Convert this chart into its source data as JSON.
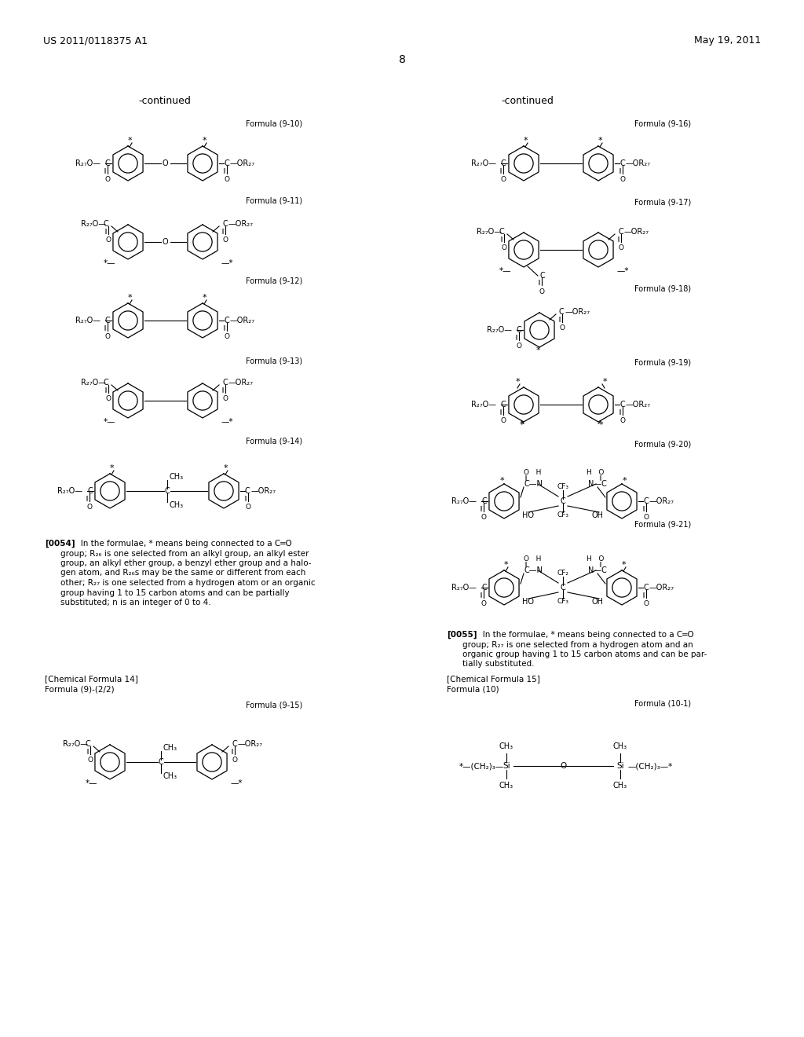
{
  "patent_number": "US 2011/0118375 A1",
  "patent_date": "May 19, 2011",
  "page_number": "8",
  "bg_color": "#ffffff"
}
